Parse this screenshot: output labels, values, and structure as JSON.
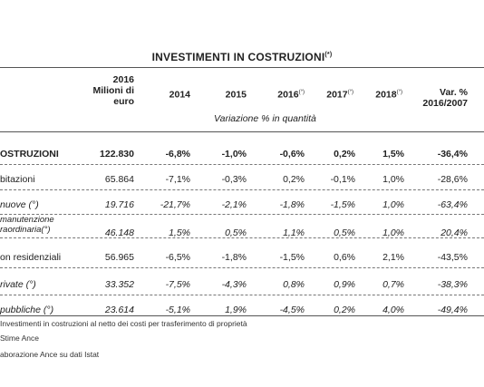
{
  "title": "INVESTIMENTI IN COSTRUZIONI",
  "title_note": "(*)",
  "header": {
    "col_2016_line1": "2016",
    "col_2016_line2": "Milioni di",
    "col_2016_line3": "euro",
    "years": [
      {
        "label": "2014",
        "note": ""
      },
      {
        "label": "2015",
        "note": ""
      },
      {
        "label": "2016",
        "note": "(°)"
      },
      {
        "label": "2017",
        "note": "(°)"
      },
      {
        "label": "2018",
        "note": "(°)"
      }
    ],
    "var_line1": "Var. %",
    "var_line2": "2016/2007",
    "variation_label": "Variazione % in quantità"
  },
  "rows": [
    {
      "label": "OSTRUZIONI",
      "label2": "",
      "style": "bold",
      "values": [
        "122.830",
        "-6,8%",
        "-1,0%",
        "-0,6%",
        "0,2%",
        "1,5%",
        "-36,4%"
      ]
    },
    {
      "label": "bitazioni",
      "label2": "",
      "style": "normal",
      "values": [
        "65.864",
        "-7,1%",
        "-0,3%",
        "0,2%",
        "-0,1%",
        "1,0%",
        "-28,6%"
      ]
    },
    {
      "label": "nuove (°)",
      "label2": "",
      "style": "italic",
      "values": [
        "19.716",
        "-21,7%",
        "-2,1%",
        "-1,8%",
        "-1,5%",
        "1,0%",
        "-63,4%"
      ]
    },
    {
      "label": "manutenzione",
      "label2": "raordinaria(°)",
      "style": "italic",
      "values": [
        "46.148",
        "1,5%",
        "0,5%",
        "1,1%",
        "0,5%",
        "1,0%",
        "20,4%"
      ]
    },
    {
      "label": "on residenziali",
      "label2": "",
      "style": "normal",
      "values": [
        "56.965",
        "-6,5%",
        "-1,8%",
        "-1,5%",
        "0,6%",
        "2,1%",
        "-43,5%"
      ]
    },
    {
      "label": "rivate (°)",
      "label2": "",
      "style": "italic",
      "values": [
        "33.352",
        "-7,5%",
        "-4,3%",
        "0,8%",
        "0,9%",
        "0,7%",
        "-38,3%"
      ]
    },
    {
      "label": "pubbliche (°)",
      "label2": "",
      "style": "italic",
      "values": [
        "23.614",
        "-5,1%",
        "1,9%",
        "-4,5%",
        "0,2%",
        "4,0%",
        "-49,4%"
      ]
    }
  ],
  "notes": [
    "Investimenti in costruzioni al netto dei costi per trasferimento di proprietà",
    "Stime Ance",
    "aborazione Ance su dati Istat"
  ]
}
